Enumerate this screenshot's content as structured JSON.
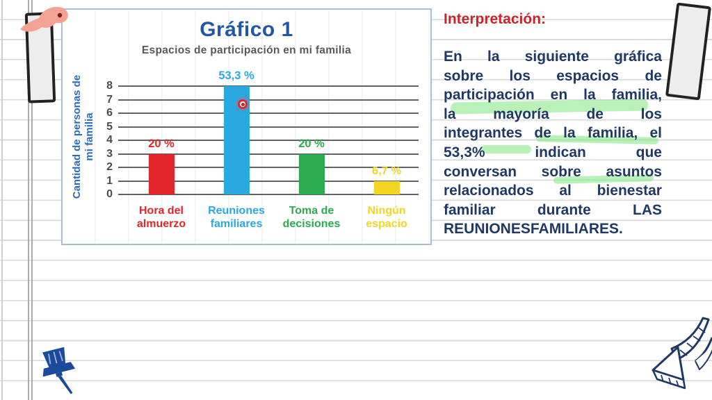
{
  "chart_data": {
    "type": "bar",
    "title": "Gráfico 1",
    "subtitle": "Espacios de participación en mi familia",
    "ylabel_line1": "Cantidad de personas de",
    "ylabel_line2": "mi familia",
    "ylabel": "Cantidad de personas de mi familia",
    "ylim": [
      0,
      8
    ],
    "yticks": [
      8,
      7,
      6,
      5,
      4,
      3,
      2,
      1,
      0
    ],
    "grid": true,
    "categories": [
      {
        "label_line1": "Hora del",
        "label_line2": "almuerzo",
        "value": 3,
        "percent_label": "20 %",
        "color": "#e2242b"
      },
      {
        "label_line1": "Reuniones",
        "label_line2": "familiares",
        "value": 8,
        "percent_label": "53,3 %",
        "color": "#29a9e0"
      },
      {
        "label_line1": "Toma de",
        "label_line2": "decisiones",
        "value": 3,
        "percent_label": "20 %",
        "color": "#2baa4f"
      },
      {
        "label_line1": "Ningún",
        "label_line2": "espacio",
        "value": 1,
        "percent_label": "6,7 %",
        "color": "#f4d622"
      }
    ],
    "title_color": "#2157a5",
    "subtitle_color": "#58595b",
    "ylabel_color": "#2b6cb8",
    "tick_color": "#4b4b4b",
    "gridline_color": "#616161"
  },
  "interpretation": {
    "heading": "Interpretación:",
    "heading_color": "#c8252b",
    "text_color": "#1f3864",
    "highlight_color": "#7fe87f",
    "full_text": "En la siguiente gráfica sobre los espacios de participación en la familia, la mayoría de los integrantes de la familia, el 53,3% indican que conversan sobre asuntos relacionados al bienestar familiar durante LAS REUNIONES FAMILIARES.",
    "lines": [
      "En la siguiente gráfica",
      "sobre los espacios de",
      "participación en la familia,",
      "la mayoría de los",
      "integrantes de la familia, el",
      "53,3% indican que",
      "conversan sobre asuntos",
      "relacionados al bienestar",
      "familiar durante LAS",
      "REUNIONES FAMILIARES."
    ]
  },
  "decorations": {
    "pointer_ring_color": "#e0262e",
    "pushpin_color": "#1b4a9b",
    "arrow_color": "#1f3864",
    "tape_fill": "#ededed",
    "tape_border": "#222222",
    "blob_color": "#f4a392",
    "blob_dot_color": "#7c1d1d",
    "rule_color": "#d9d9d9"
  }
}
